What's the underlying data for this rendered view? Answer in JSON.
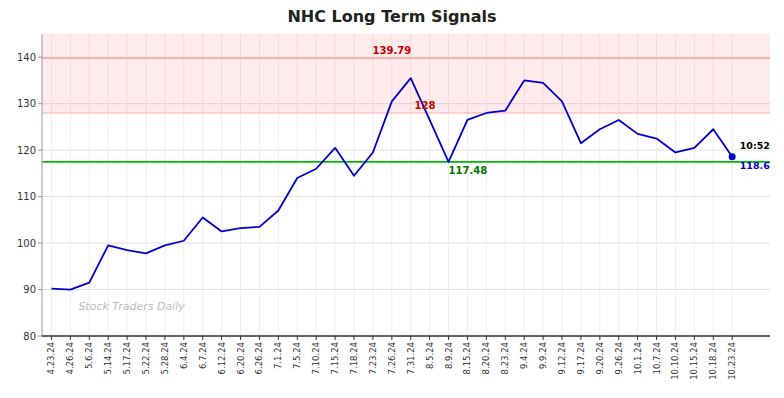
{
  "chart_data": {
    "type": "line",
    "title": "NHC Long Term Signals",
    "categories": [
      "4.23.24",
      "4.26.24",
      "5.6.24",
      "5.14.24",
      "5.17.24",
      "5.22.24",
      "5.28.24",
      "6.4.24",
      "6.7.24",
      "6.12.24",
      "6.20.24",
      "6.26.24",
      "7.1.24",
      "7.5.24",
      "7.10.24",
      "7.15.24",
      "7.18.24",
      "7.23.24",
      "7.26.24",
      "7.31.24",
      "8.5.24",
      "8.9.24",
      "8.15.24",
      "8.20.24",
      "8.23.24",
      "9.4.24",
      "9.9.24",
      "9.12.24",
      "9.17.24",
      "9.20.24",
      "9.26.24",
      "10.1.24",
      "10.7.24",
      "10.10.24",
      "10.15.24",
      "10.18.24",
      "10.23.24"
    ],
    "values": [
      90.2,
      90.0,
      91.5,
      99.5,
      98.5,
      97.8,
      99.5,
      100.5,
      105.5,
      102.5,
      103.2,
      103.5,
      107.0,
      114.0,
      116.0,
      120.5,
      114.5,
      119.5,
      130.5,
      135.5,
      126.5,
      117.5,
      126.5,
      128.0,
      128.5,
      135.0,
      134.5,
      130.5,
      121.5,
      124.5,
      126.5,
      123.5,
      122.5,
      119.5,
      120.5,
      124.5,
      118.6
    ],
    "color": "#0000cc",
    "ylim": [
      80,
      145
    ],
    "yticks": [
      80,
      90,
      100,
      110,
      120,
      130,
      140
    ],
    "grid": true,
    "reference_lines": [
      {
        "value": 139.79,
        "color": "#ff8888",
        "label": "139.79",
        "label_color": "#cc0000"
      },
      {
        "value": 128,
        "color": "#ffaaaa",
        "label": "128",
        "label_color": "#cc0000"
      },
      {
        "value": 117.48,
        "color": "#00bb00",
        "label": "117.48",
        "label_color": "#007700"
      }
    ],
    "bands": [
      {
        "from": 128,
        "to": 139.79,
        "color": "#ff0000"
      },
      {
        "from": 139.79,
        "to": 145,
        "color": "#ff0000"
      }
    ],
    "end_label": "10:52",
    "watermark": "Stock Traders Daily"
  }
}
